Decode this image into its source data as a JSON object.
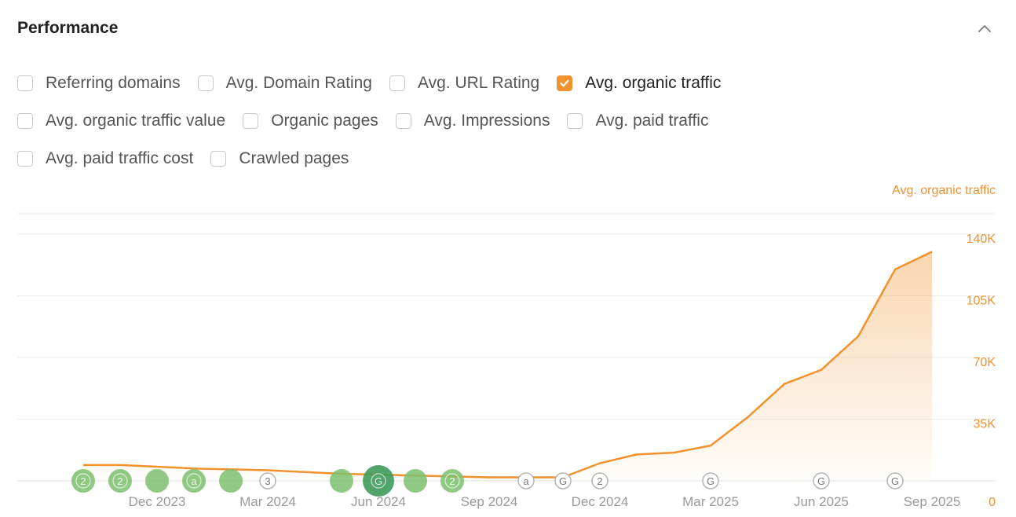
{
  "panel": {
    "title": "Performance",
    "collapse_icon": "chevron-up-icon"
  },
  "filters": [
    [
      {
        "label": "Referring domains",
        "checked": false
      },
      {
        "label": "Avg. Domain Rating",
        "checked": false
      },
      {
        "label": "Avg. URL Rating",
        "checked": false
      },
      {
        "label": "Avg. organic traffic",
        "checked": true
      }
    ],
    [
      {
        "label": "Avg. organic traffic value",
        "checked": false
      },
      {
        "label": "Organic pages",
        "checked": false
      },
      {
        "label": "Avg. Impressions",
        "checked": false
      },
      {
        "label": "Avg. paid traffic",
        "checked": false
      }
    ],
    [
      {
        "label": "Avg. paid traffic cost",
        "checked": false
      },
      {
        "label": "Crawled pages",
        "checked": false
      }
    ]
  ],
  "colors": {
    "accent": "#f0922e",
    "marker_green": "#7cc06f",
    "marker_green_dark": "#3e9a5a"
  },
  "chart_data": {
    "type": "area",
    "series": [
      {
        "name": "Avg. organic traffic",
        "x": [
          "2023-10",
          "2023-11",
          "2023-12",
          "2024-01",
          "2024-02",
          "2024-03",
          "2024-04",
          "2024-05",
          "2024-06",
          "2024-07",
          "2024-08",
          "2024-09",
          "2024-10",
          "2024-11",
          "2024-12",
          "2025-01",
          "2025-02",
          "2025-03",
          "2025-04",
          "2025-05",
          "2025-06",
          "2025-07",
          "2025-08",
          "2025-09"
        ],
        "values": [
          9000,
          9000,
          8000,
          7000,
          6500,
          6000,
          5000,
          4000,
          3500,
          3000,
          2500,
          2000,
          2000,
          2000,
          10000,
          15000,
          16000,
          20000,
          36000,
          55000,
          63000,
          82000,
          120000,
          130000
        ]
      }
    ],
    "x_ticks": [
      "Dec 2023",
      "Mar 2024",
      "Jun 2024",
      "Sep 2024",
      "Dec 2024",
      "Mar 2025",
      "Jun 2025",
      "Sep 2025"
    ],
    "y_ticks": [
      "0",
      "35K",
      "70K",
      "105K",
      "140K"
    ],
    "ylim": [
      0,
      140000
    ],
    "grid": true,
    "legend": "top-right",
    "annotations": [
      {
        "date": "2023-10",
        "label": "2",
        "style": "filled"
      },
      {
        "date": "2023-11",
        "label": "2",
        "style": "filled"
      },
      {
        "date": "2023-12",
        "label": "",
        "style": "filled"
      },
      {
        "date": "2024-01",
        "label": "a",
        "style": "filled"
      },
      {
        "date": "2024-02",
        "label": "",
        "style": "filled"
      },
      {
        "date": "2024-03",
        "label": "3",
        "style": "outline"
      },
      {
        "date": "2024-05",
        "label": "",
        "style": "filled"
      },
      {
        "date": "2024-06",
        "label": "G",
        "style": "filled-dark"
      },
      {
        "date": "2024-07",
        "label": "",
        "style": "filled"
      },
      {
        "date": "2024-08",
        "label": "2",
        "style": "filled"
      },
      {
        "date": "2024-10",
        "label": "a",
        "style": "outline"
      },
      {
        "date": "2024-11",
        "label": "G",
        "style": "outline"
      },
      {
        "date": "2024-12",
        "label": "2",
        "style": "outline"
      },
      {
        "date": "2025-03",
        "label": "G",
        "style": "outline"
      },
      {
        "date": "2025-06",
        "label": "G",
        "style": "outline"
      },
      {
        "date": "2025-08",
        "label": "G",
        "style": "outline"
      }
    ]
  }
}
